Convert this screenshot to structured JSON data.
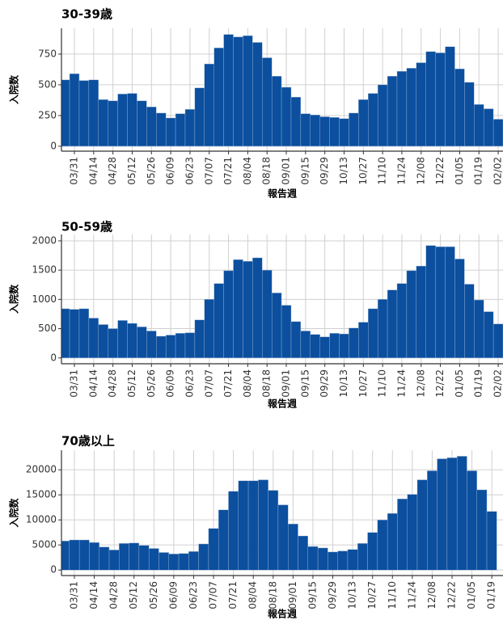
{
  "chart_data": [
    {
      "type": "bar",
      "title": "30-39歳",
      "xlabel": "報告週",
      "ylabel": "入院数",
      "color": "#0b4f9e",
      "grid": true,
      "categories": [
        null,
        "03/31",
        null,
        "04/14",
        null,
        "04/28",
        null,
        "05/12",
        null,
        "05/26",
        null,
        "06/09",
        null,
        "06/23",
        null,
        "07/07",
        null,
        "07/21",
        null,
        "08/04",
        null,
        "08/18",
        null,
        "09/01",
        null,
        "09/15",
        null,
        "09/29",
        null,
        "10/13",
        null,
        "10/27",
        null,
        "11/10",
        null,
        "11/24",
        null,
        "12/08",
        null,
        "12/22",
        null,
        "01/05",
        null,
        "01/19",
        null,
        "02/02"
      ],
      "values": [
        540,
        590,
        535,
        540,
        380,
        370,
        425,
        430,
        370,
        320,
        270,
        230,
        265,
        300,
        475,
        670,
        800,
        910,
        890,
        900,
        845,
        720,
        570,
        480,
        400,
        265,
        255,
        240,
        235,
        225,
        270,
        380,
        430,
        500,
        570,
        610,
        635,
        680,
        770,
        760,
        810,
        630,
        520,
        340,
        305,
        220
      ],
      "ylim": [
        -40,
        960
      ],
      "yticks": [
        0,
        250,
        500,
        750
      ]
    },
    {
      "type": "bar",
      "title": "50-59歳",
      "xlabel": "報告週",
      "ylabel": "入院数",
      "color": "#0b4f9e",
      "grid": true,
      "categories": [
        null,
        "03/31",
        null,
        "04/14",
        null,
        "04/28",
        null,
        "05/12",
        null,
        "05/26",
        null,
        "06/09",
        null,
        "06/23",
        null,
        "07/07",
        null,
        "07/21",
        null,
        "08/04",
        null,
        "08/18",
        null,
        "09/01",
        null,
        "09/15",
        null,
        "09/29",
        null,
        "10/13",
        null,
        "10/27",
        null,
        "11/10",
        null,
        "11/24",
        null,
        "12/08",
        null,
        "12/22",
        null,
        "01/05",
        null,
        "01/19",
        null,
        "02/02"
      ],
      "values": [
        840,
        830,
        840,
        680,
        570,
        500,
        640,
        590,
        530,
        460,
        370,
        390,
        420,
        430,
        650,
        1000,
        1270,
        1490,
        1680,
        1650,
        1710,
        1500,
        1110,
        900,
        620,
        460,
        400,
        360,
        420,
        410,
        510,
        610,
        840,
        1000,
        1160,
        1270,
        1490,
        1570,
        1920,
        1900,
        1900,
        1690,
        1260,
        990,
        790,
        580
      ],
      "ylim": [
        -100,
        2110
      ],
      "yticks": [
        0,
        500,
        1000,
        1500,
        2000
      ]
    },
    {
      "type": "bar",
      "title": "70歳以上",
      "xlabel": "報告週",
      "ylabel": "入院数",
      "color": "#0b4f9e",
      "grid": true,
      "categories": [
        null,
        "03/31",
        null,
        "04/14",
        null,
        "04/28",
        null,
        "05/12",
        null,
        "05/26",
        null,
        "06/09",
        null,
        "06/23",
        null,
        "07/07",
        null,
        "07/21",
        null,
        "08/04",
        null,
        "08/18",
        null,
        "09/01",
        null,
        "09/15",
        null,
        "09/29",
        null,
        "10/13",
        null,
        "10/27",
        null,
        "11/10",
        null,
        "11/24",
        null,
        "12/08",
        null,
        "12/22",
        null,
        "01/05",
        null,
        "01/19"
      ],
      "values": [
        5800,
        6000,
        6000,
        5500,
        4600,
        4000,
        5300,
        5400,
        4900,
        4300,
        3500,
        3200,
        3300,
        3700,
        5200,
        8300,
        12000,
        15700,
        17800,
        17800,
        18000,
        15900,
        13000,
        9200,
        6800,
        4700,
        4400,
        3600,
        3800,
        4100,
        5300,
        7500,
        10000,
        11300,
        14200,
        15100,
        18000,
        19800,
        22200,
        22400,
        22700,
        19800,
        16000,
        11700
      ],
      "ylim": [
        -1100,
        23900
      ],
      "yticks": [
        0,
        5000,
        10000,
        15000,
        20000
      ]
    }
  ]
}
